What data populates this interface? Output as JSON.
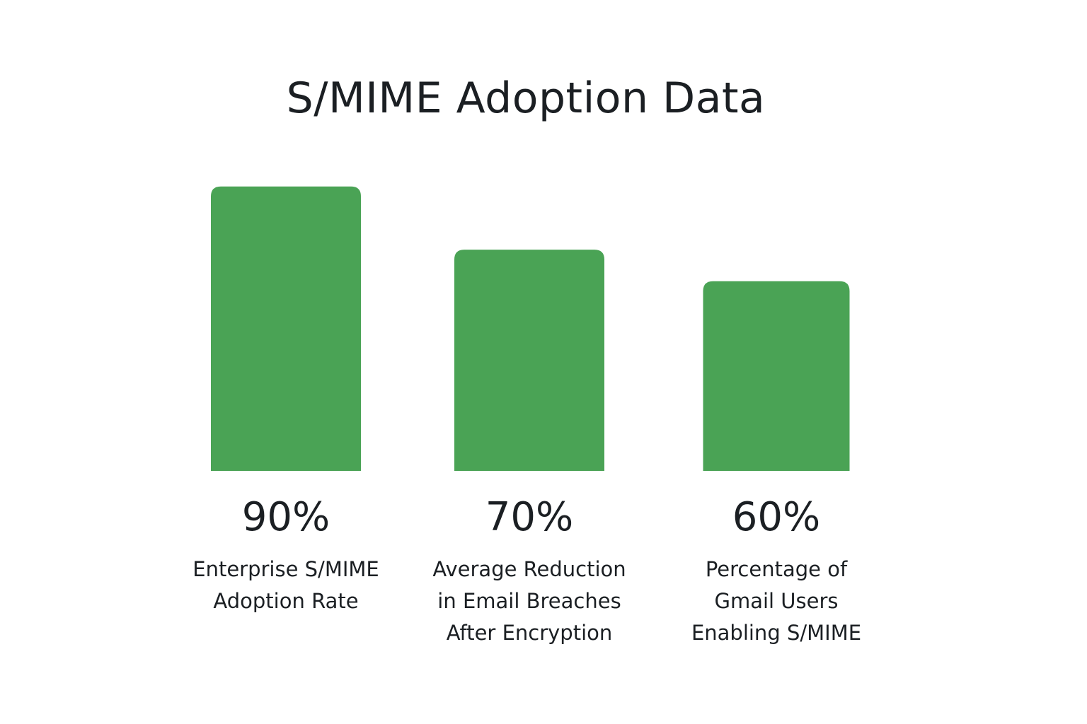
{
  "chart_data": {
    "type": "bar",
    "title": "S/MIME Adoption Data",
    "categories": [
      [
        "Enterprise S/MIME",
        "Adoption Rate"
      ],
      [
        "Average Reduction",
        "in Email Breaches",
        "After Encryption"
      ],
      [
        "Percentage of",
        "Gmail Users",
        "Enabling S/MIME"
      ]
    ],
    "values": [
      90,
      70,
      60
    ],
    "value_labels": [
      "90%",
      "70%",
      "60%"
    ],
    "unit": "%",
    "bar_color": "#4aa355",
    "ylim": [
      0,
      100
    ],
    "grid": false,
    "legend": "none"
  }
}
